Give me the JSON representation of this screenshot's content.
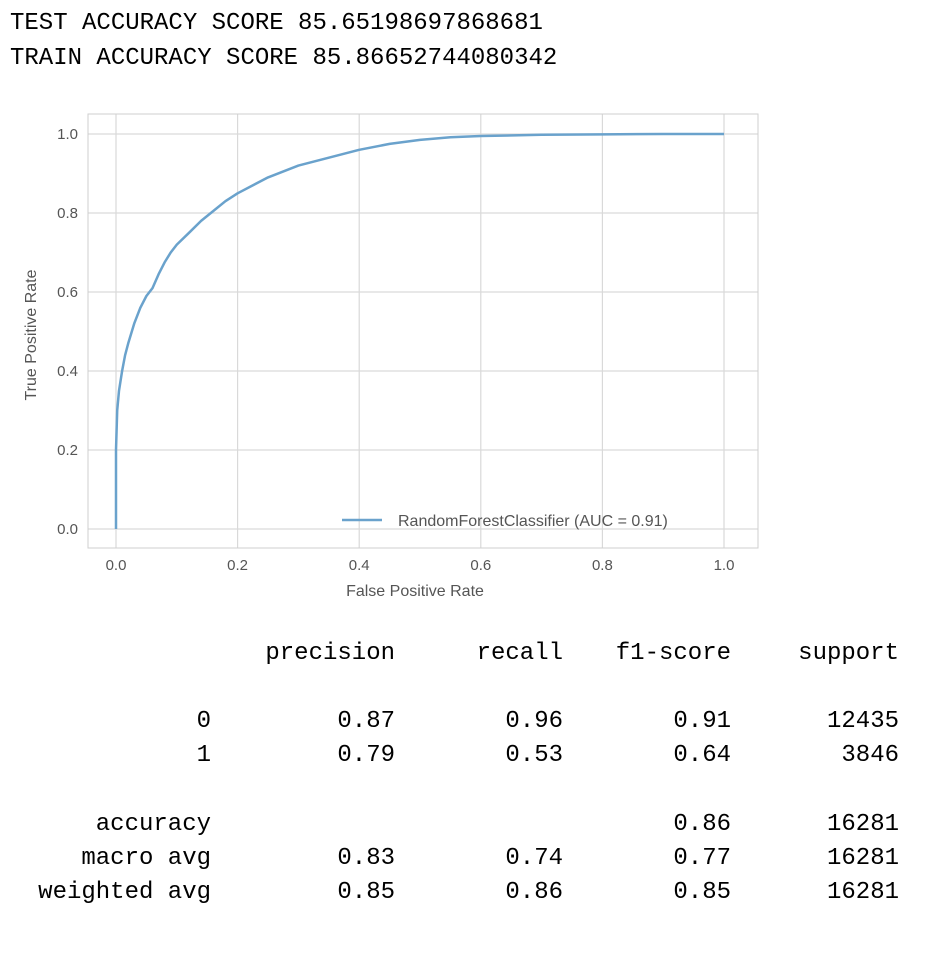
{
  "header": {
    "test_score_line": "TEST ACCURACY SCORE 85.65198697868681",
    "train_score_line": "TRAIN ACCURACY SCORE 85.86652744080342"
  },
  "colors": {
    "curve": "#6aa2cc",
    "grid": "#d9d9d9",
    "axes_text": "#555555"
  },
  "chart_data": {
    "type": "line",
    "title": "",
    "xlabel": "False Positive Rate",
    "ylabel": "True Positive Rate",
    "xlim": [
      0.0,
      1.0
    ],
    "ylim": [
      0.0,
      1.0
    ],
    "xticks": [
      "0.0",
      "0.2",
      "0.4",
      "0.6",
      "0.8",
      "1.0"
    ],
    "yticks": [
      "0.0",
      "0.2",
      "0.4",
      "0.6",
      "0.8",
      "1.0"
    ],
    "grid": true,
    "legend": {
      "placement": "bottom-right",
      "entries": [
        "RandomForestClassifier (AUC = 0.91)"
      ]
    },
    "series": [
      {
        "name": "RandomForestClassifier (AUC = 0.91)",
        "x": [
          0.0,
          0.0,
          0.002,
          0.005,
          0.01,
          0.015,
          0.02,
          0.03,
          0.04,
          0.05,
          0.06,
          0.07,
          0.08,
          0.09,
          0.1,
          0.12,
          0.14,
          0.16,
          0.18,
          0.2,
          0.25,
          0.3,
          0.35,
          0.4,
          0.45,
          0.5,
          0.55,
          0.6,
          0.7,
          0.8,
          0.9,
          1.0
        ],
        "y": [
          0.0,
          0.2,
          0.3,
          0.35,
          0.4,
          0.44,
          0.47,
          0.52,
          0.56,
          0.59,
          0.61,
          0.645,
          0.675,
          0.7,
          0.72,
          0.75,
          0.78,
          0.805,
          0.83,
          0.85,
          0.89,
          0.92,
          0.94,
          0.96,
          0.975,
          0.985,
          0.992,
          0.995,
          0.998,
          0.999,
          1.0,
          1.0
        ]
      }
    ]
  },
  "report": {
    "columns": [
      "precision",
      "recall",
      "f1-score",
      "support"
    ],
    "rows": [
      {
        "label": "0",
        "precision": "0.87",
        "recall": "0.96",
        "f1": "0.91",
        "support": "12435"
      },
      {
        "label": "1",
        "precision": "0.79",
        "recall": "0.53",
        "f1": "0.64",
        "support": "3846"
      },
      {
        "label": "accuracy",
        "precision": "",
        "recall": "",
        "f1": "0.86",
        "support": "16281"
      },
      {
        "label": "macro avg",
        "precision": "0.83",
        "recall": "0.74",
        "f1": "0.77",
        "support": "16281"
      },
      {
        "label": "weighted avg",
        "precision": "0.85",
        "recall": "0.86",
        "f1": "0.85",
        "support": "16281"
      }
    ]
  }
}
